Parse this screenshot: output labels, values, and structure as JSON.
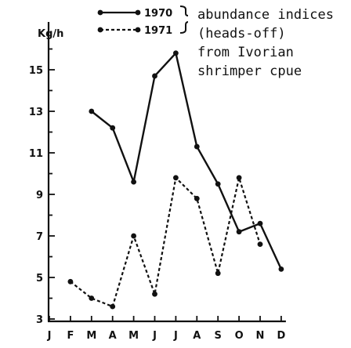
{
  "chart_data": {
    "type": "line",
    "title": "",
    "xlabel": "",
    "ylabel": "Kg/h",
    "categories": [
      "J",
      "F",
      "M",
      "A",
      "M",
      "J",
      "J",
      "A",
      "S",
      "O",
      "N",
      "D"
    ],
    "yticks": [
      3,
      5,
      7,
      9,
      11,
      13,
      15
    ],
    "ylim": [
      3,
      16.5
    ],
    "grid": false,
    "legend_placement": "top",
    "annotation": [
      "abundance indices",
      "(heads-off)",
      "from Ivorian",
      "shrimper cpue"
    ],
    "series": [
      {
        "name": "1970",
        "style": "solid",
        "color": "#111111",
        "values": [
          null,
          null,
          13.0,
          12.2,
          9.6,
          14.7,
          15.8,
          11.3,
          9.5,
          7.2,
          7.6,
          5.4
        ]
      },
      {
        "name": "1971",
        "style": "dashed",
        "color": "#111111",
        "values": [
          null,
          4.8,
          4.0,
          3.6,
          7.0,
          4.2,
          9.8,
          8.8,
          5.2,
          9.8,
          6.6,
          null
        ]
      }
    ]
  }
}
